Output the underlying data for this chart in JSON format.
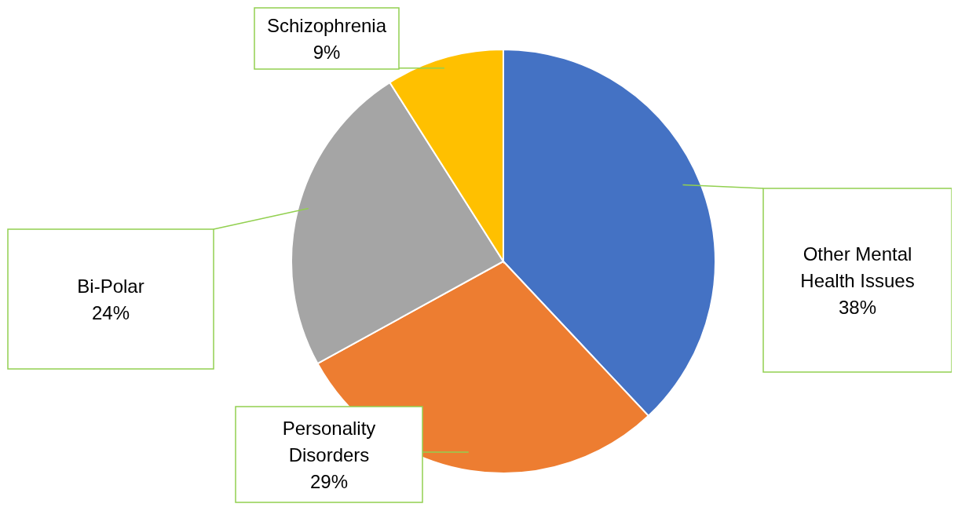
{
  "chart_data": {
    "type": "pie",
    "categories": [
      "Other Mental Health Issues",
      "Personality Disorders",
      "Bi-Polar",
      "Schizophrenia"
    ],
    "values": [
      38,
      29,
      24,
      9
    ],
    "colors": [
      "#4472c4",
      "#ed7d31",
      "#a5a5a5",
      "#ffc000"
    ],
    "value_labels": [
      "38%",
      "29%",
      "24%",
      "9%"
    ],
    "legend": false
  }
}
